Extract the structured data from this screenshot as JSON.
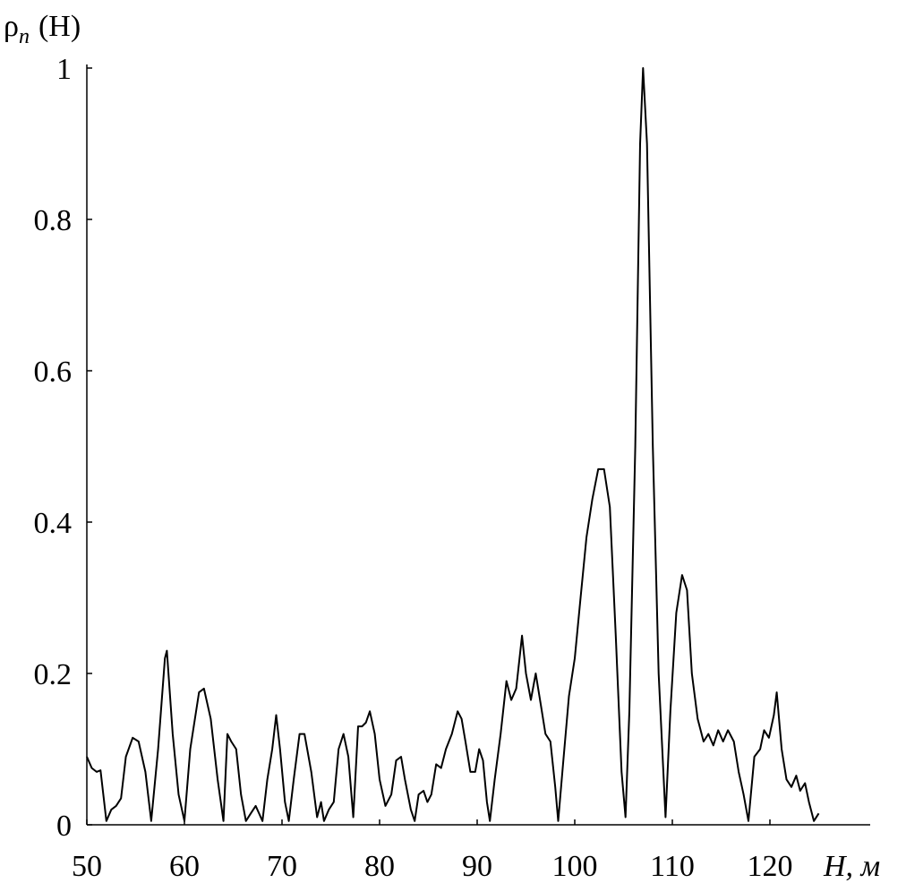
{
  "chart_data": {
    "type": "line",
    "y_label": {
      "symbol": "ρ",
      "subscript": "n",
      "argument": "(H)"
    },
    "x_label": "H, м",
    "xlim": [
      50,
      130
    ],
    "xticks": [
      50,
      60,
      70,
      80,
      90,
      100,
      110,
      120
    ],
    "ylim": [
      0,
      1
    ],
    "yticks": [
      0,
      0.2,
      0.4,
      0.6,
      0.8,
      1
    ],
    "grid": false,
    "series": [
      {
        "color": "#000000",
        "x": [
          50,
          50.5,
          51,
          51.4,
          52,
          52.5,
          53,
          53.5,
          54,
          54.7,
          55.3,
          56,
          56.6,
          57.3,
          58,
          58.2,
          58.8,
          59.4,
          60,
          60.6,
          61.5,
          62,
          62.7,
          63.4,
          64,
          64.4,
          64.8,
          65.3,
          65.8,
          66.3,
          66.8,
          67.3,
          68,
          68.5,
          69,
          69.4,
          69.8,
          70.3,
          70.7,
          71.2,
          71.8,
          72.3,
          73,
          73.6,
          74,
          74.3,
          74.8,
          75.3,
          75.8,
          76.3,
          76.8,
          77.3,
          77.8,
          78.2,
          78.6,
          79,
          79.5,
          80,
          80.6,
          81.2,
          81.7,
          82.2,
          82.6,
          83.2,
          83.6,
          84,
          84.5,
          84.9,
          85.3,
          85.8,
          86.3,
          86.8,
          87.4,
          88,
          88.4,
          88.8,
          89.3,
          89.8,
          90.2,
          90.6,
          91,
          91.3,
          91.8,
          92.4,
          93,
          93.5,
          94,
          94.6,
          95,
          95.5,
          96,
          96.5,
          97,
          97.5,
          98,
          98.3,
          98.8,
          99.4,
          100,
          100.6,
          101.2,
          101.8,
          102.4,
          103,
          103.6,
          104.2,
          104.8,
          105.2,
          105.6,
          106.2,
          106.7,
          107,
          107.4,
          108,
          108.6,
          109.3,
          109.8,
          110.4,
          111,
          111.5,
          112,
          112.6,
          113.2,
          113.7,
          114.2,
          114.7,
          115.2,
          115.7,
          116.3,
          116.8,
          117.3,
          117.8,
          118.4,
          119,
          119.4,
          119.9,
          120.4,
          120.7,
          121.2,
          121.7,
          122.2,
          122.7,
          123.1,
          123.6,
          124,
          124.5,
          125
        ],
        "values": [
          0.09,
          0.075,
          0.07,
          0.072,
          0.005,
          0.02,
          0.025,
          0.035,
          0.09,
          0.115,
          0.11,
          0.07,
          0.005,
          0.1,
          0.22,
          0.23,
          0.12,
          0.04,
          0.005,
          0.1,
          0.175,
          0.18,
          0.14,
          0.06,
          0.005,
          0.12,
          0.11,
          0.1,
          0.04,
          0.005,
          0.015,
          0.025,
          0.005,
          0.06,
          0.1,
          0.145,
          0.1,
          0.03,
          0.005,
          0.06,
          0.12,
          0.12,
          0.07,
          0.01,
          0.03,
          0.005,
          0.02,
          0.03,
          0.1,
          0.12,
          0.09,
          0.01,
          0.13,
          0.13,
          0.135,
          0.15,
          0.12,
          0.06,
          0.025,
          0.04,
          0.085,
          0.09,
          0.06,
          0.02,
          0.005,
          0.04,
          0.045,
          0.03,
          0.04,
          0.08,
          0.075,
          0.1,
          0.12,
          0.15,
          0.14,
          0.11,
          0.07,
          0.07,
          0.1,
          0.085,
          0.03,
          0.005,
          0.06,
          0.12,
          0.19,
          0.165,
          0.18,
          0.25,
          0.2,
          0.165,
          0.2,
          0.16,
          0.12,
          0.11,
          0.05,
          0.005,
          0.08,
          0.17,
          0.22,
          0.3,
          0.38,
          0.43,
          0.47,
          0.47,
          0.42,
          0.25,
          0.07,
          0.01,
          0.15,
          0.5,
          0.9,
          1.0,
          0.9,
          0.5,
          0.2,
          0.01,
          0.15,
          0.28,
          0.33,
          0.31,
          0.2,
          0.14,
          0.11,
          0.12,
          0.105,
          0.125,
          0.11,
          0.125,
          0.11,
          0.07,
          0.04,
          0.005,
          0.09,
          0.1,
          0.125,
          0.115,
          0.145,
          0.175,
          0.1,
          0.06,
          0.05,
          0.065,
          0.045,
          0.055,
          0.03,
          0.005,
          0.015
        ]
      }
    ]
  }
}
